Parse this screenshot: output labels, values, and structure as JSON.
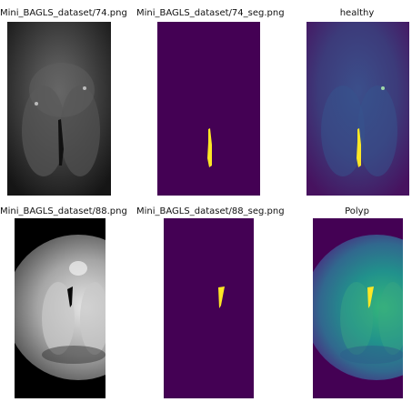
{
  "panels": [
    {
      "title": "Mini_BAGLS_dataset/74.png"
    },
    {
      "title": "Mini_BAGLS_dataset/74_seg.png"
    },
    {
      "title": "healthy"
    },
    {
      "title": "Mini_BAGLS_dataset/88.png"
    },
    {
      "title": "Mini_BAGLS_dataset/88_seg.png"
    },
    {
      "title": "Polyp"
    }
  ],
  "colors": {
    "viridis_dark": "#440154",
    "viridis_yellow": "#fde725",
    "viridis_teal": "#21918c",
    "gray_dark": "#2a2a2a",
    "gray_light": "#d9d9d9"
  },
  "icons": []
}
